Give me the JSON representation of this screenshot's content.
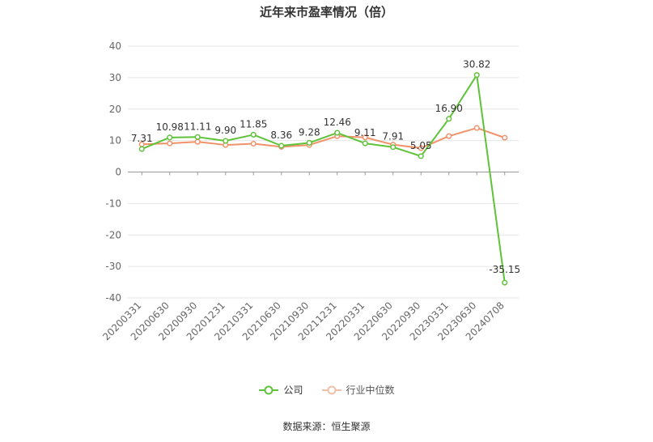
{
  "chart_data": {
    "type": "line",
    "title": "近年来市盈率情况（倍）",
    "categories": [
      "20200331",
      "20200630",
      "20200930",
      "20201231",
      "20210331",
      "20210630",
      "20210930",
      "20211231",
      "20220331",
      "20220630",
      "20220930",
      "20230331",
      "20230630",
      "20240708"
    ],
    "series": [
      {
        "name": "公司",
        "color": "#5fc33a",
        "values": [
          7.31,
          10.98,
          11.11,
          9.9,
          11.85,
          8.36,
          9.28,
          12.46,
          9.11,
          7.91,
          5.05,
          16.9,
          30.82,
          -35.15
        ],
        "labels": [
          "7.31",
          "10.98",
          "11.11",
          "9.90",
          "11.85",
          "8.36",
          "9.28",
          "12.46",
          "9.11",
          "7.91",
          "5.05",
          "16.90",
          "30.82",
          "-35.15"
        ]
      },
      {
        "name": "行业中位数",
        "color": "#f0926a",
        "values": [
          8.8,
          9.1,
          9.6,
          8.6,
          9.0,
          8.0,
          8.6,
          11.4,
          11.0,
          8.7,
          7.6,
          11.4,
          14.0,
          10.9
        ]
      }
    ],
    "yticks": [
      "40",
      "30",
      "20",
      "10",
      "0",
      "-10",
      "-20",
      "-30",
      "-40"
    ],
    "ylim": [
      -40,
      40
    ],
    "grid": true,
    "legend_position": "bottom"
  },
  "source_note": "数据来源：恒生聚源"
}
